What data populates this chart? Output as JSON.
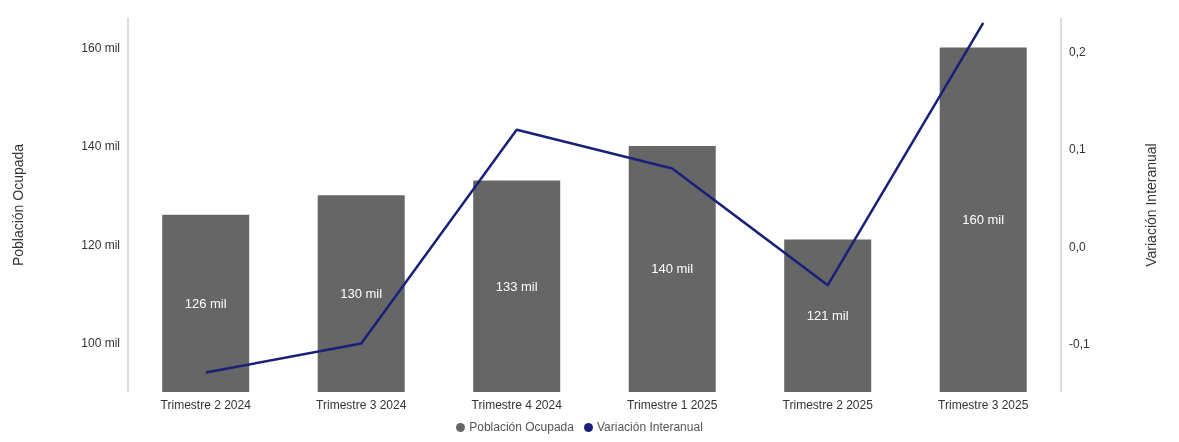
{
  "chart_data": {
    "type": "bar",
    "categories": [
      "Trimestre 2 2024",
      "Trimestre 3 2024",
      "Trimestre 4 2024",
      "Trimestre 1 2025",
      "Trimestre 2 2025",
      "Trimestre 3 2025"
    ],
    "ylabel": "Población Ocupada",
    "y2label": "Variación Interanual",
    "series": [
      {
        "name": "Población Ocupada",
        "color": "#666666",
        "values": [
          126,
          130,
          133,
          140,
          121,
          160
        ],
        "value_labels": [
          "126 mil",
          "130 mil",
          "133 mil",
          "140 mil",
          "121 mil",
          "160 mil"
        ]
      },
      {
        "name": "Variación Interanual",
        "type": "line",
        "axis": "y2",
        "color": "#1a1f7a",
        "values": [
          -0.13,
          -0.1,
          0.12,
          0.08,
          -0.04,
          0.23
        ]
      }
    ],
    "ylim": [
      90,
      166
    ],
    "yticks": [
      {
        "value": 100,
        "label": "100 mil"
      },
      {
        "value": 120,
        "label": "120 mil"
      },
      {
        "value": 140,
        "label": "140 mil"
      },
      {
        "value": 160,
        "label": "160 mil"
      }
    ],
    "y2lim": [
      -0.15,
      0.235
    ],
    "y2ticks": [
      {
        "value": -0.1,
        "label": "-0,1"
      },
      {
        "value": 0,
        "label": "0,0"
      },
      {
        "value": 0.1,
        "label": "0,1"
      },
      {
        "value": 0.2,
        "label": "0,2"
      }
    ],
    "grid": false,
    "legend": "bottom",
    "marker": "none",
    "line_style": "solid"
  }
}
